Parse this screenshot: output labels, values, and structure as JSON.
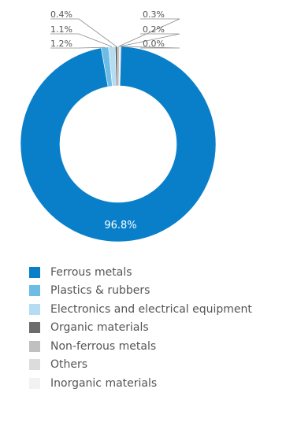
{
  "chart_data": {
    "type": "pie",
    "title": "",
    "donut": true,
    "slices": [
      {
        "label": "Ferrous metals",
        "value": 96.8,
        "display": "96.8%",
        "color": "#0a7fc9"
      },
      {
        "label": "Plastics & rubbers",
        "value": 1.2,
        "display": "1.2%",
        "color": "#6cbce6"
      },
      {
        "label": "Electronics and electrical equipment",
        "value": 1.1,
        "display": "1.1%",
        "color": "#b4dcf3"
      },
      {
        "label": "Organic materials",
        "value": 0.4,
        "display": "0.4%",
        "color": "#6c6c6c"
      },
      {
        "label": "Non-ferrous metals",
        "value": 0.3,
        "display": "0.3%",
        "color": "#c0c0c0"
      },
      {
        "label": "Others",
        "value": 0.2,
        "display": "0.2%",
        "color": "#dcdcdc"
      },
      {
        "label": "Inorganic materials",
        "value": 0.0,
        "display": "0.0%",
        "color": "#f2f2f2"
      }
    ],
    "legend_position": "bottom"
  }
}
